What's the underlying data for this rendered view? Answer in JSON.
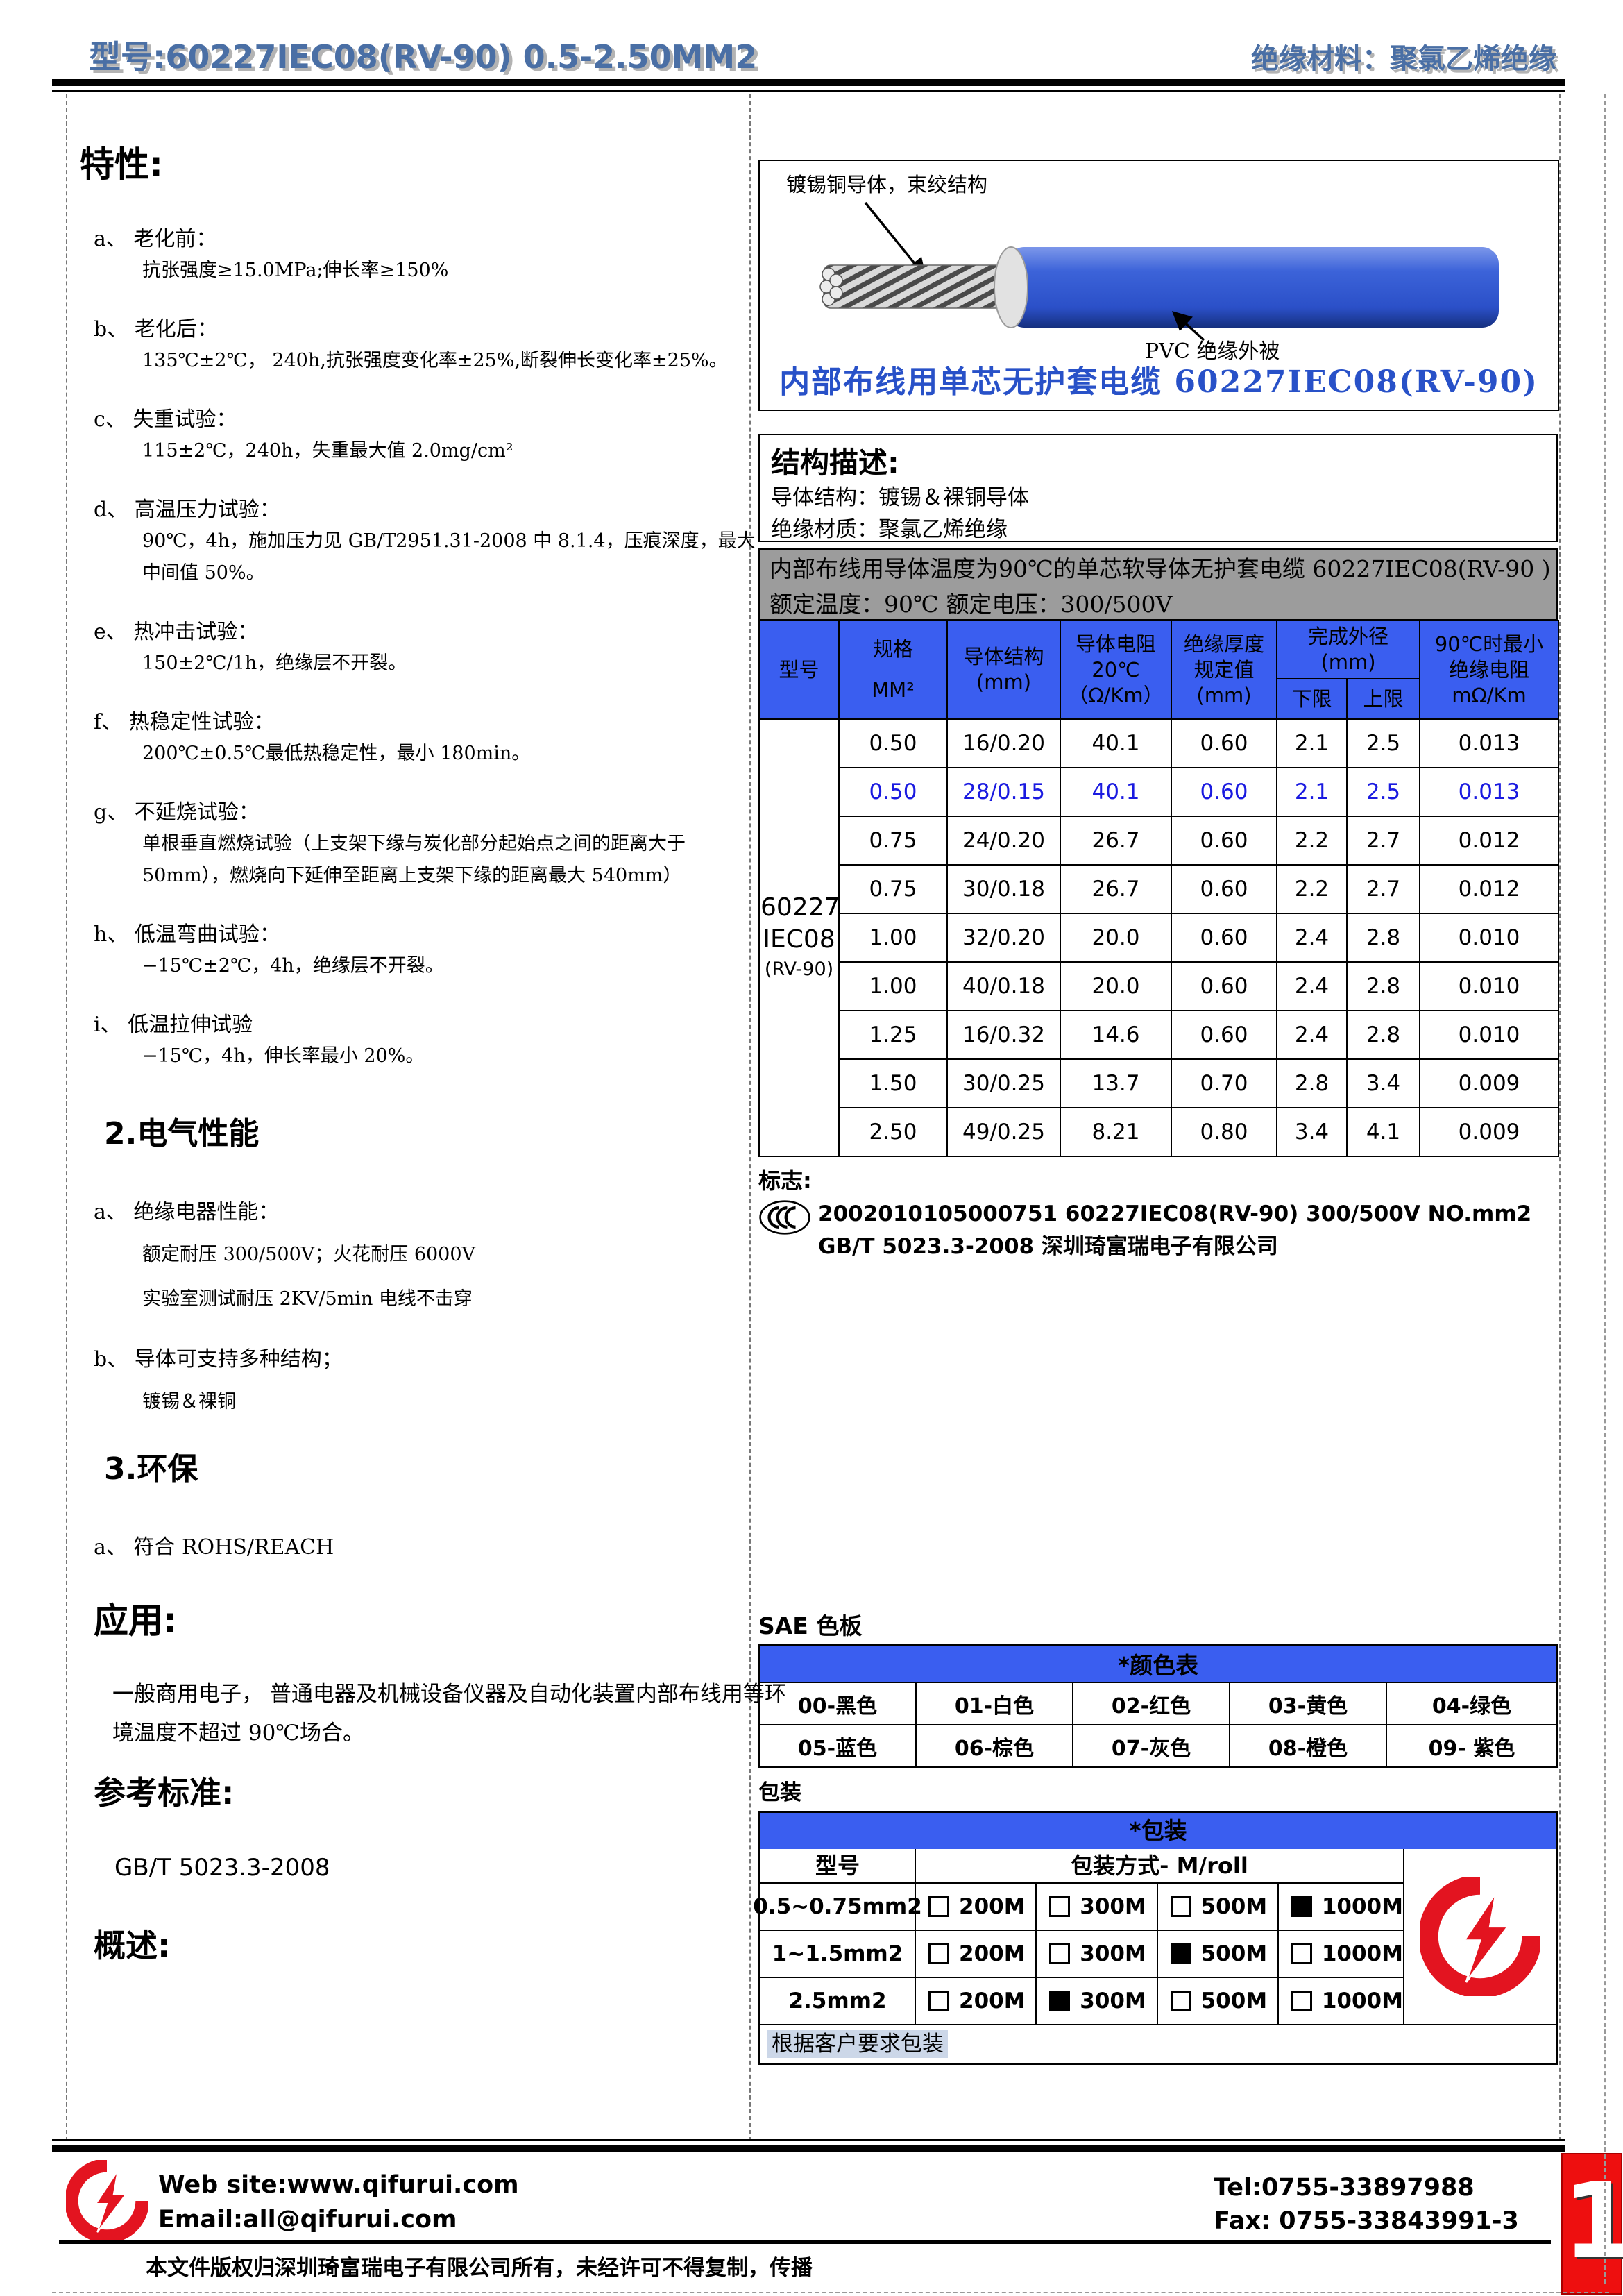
{
  "colors": {
    "header_blue": "#4a6fa5",
    "table_header_blue": "#3a5ef0",
    "row_highlight_blue": "#1a1ae0",
    "banner_gray": "#9c9c9c",
    "cable_blue": "#2b50c8",
    "brand_red": "#e31420",
    "note_highlight": "#ccd7e8"
  },
  "header": {
    "left": "型号:60227IEC08(RV-90) 0.5-2.50MM2",
    "right": "绝缘材料：聚氯乙烯绝缘"
  },
  "characteristics": {
    "title": "特性:",
    "items": [
      {
        "head": "a、 老化前：",
        "lines": [
          "抗张强度≥15.0MPa;伸长率≥150%"
        ]
      },
      {
        "head": "b、 老化后：",
        "lines": [
          "135℃±2℃， 240h,抗张强度变化率±25%,断裂伸长变化率±25%。"
        ]
      },
      {
        "head": "c、 失重试验：",
        "lines": [
          "115±2℃，240h，失重最大值 2.0mg/cm²"
        ]
      },
      {
        "head": "d、 高温压力试验：",
        "lines": [
          "90℃，4h，施加压力见 GB/T2951.31-2008 中 8.1.4，压痕深度，最大",
          "中间值 50%。"
        ]
      },
      {
        "head": "e、 热冲击试验：",
        "lines": [
          "150±2℃/1h，绝缘层不开裂。"
        ]
      },
      {
        "head": "f、 热稳定性试验：",
        "lines": [
          "200℃±0.5℃最低热稳定性，最小 180min。"
        ]
      },
      {
        "head": "g、 不延烧试验：",
        "lines": [
          "单根垂直燃烧试验（上支架下缘与炭化部分起始点之间的距离大于",
          "50mm），燃烧向下延伸至距离上支架下缘的距离最大 540mm）"
        ]
      },
      {
        "head": "h、 低温弯曲试验：",
        "lines": [
          "−15℃±2℃，4h，绝缘层不开裂。"
        ]
      },
      {
        "head": "i、 低温拉伸试验",
        "lines": [
          "−15℃，4h，伸长率最小 20%。"
        ]
      }
    ]
  },
  "electrical": {
    "title": "2.电气性能",
    "items": [
      {
        "head": "a、 绝缘电器性能：",
        "lines": [
          "额定耐压 300/500V；火花耐压 6000V",
          "实验室测试耐压 2KV/5min 电线不击穿"
        ]
      },
      {
        "head": "b、 导体可支持多种结构；",
        "lines": [
          "镀锡＆裸铜"
        ]
      }
    ]
  },
  "environment": {
    "title": "3.环保",
    "items": [
      {
        "head": "a、 符合 ROHS/REACH",
        "lines": []
      }
    ]
  },
  "application": {
    "title": "应用:",
    "lines": [
      "一般商用电子， 普通电器及机械设备仪器及自动化装置内部布线用等环",
      "境温度不超过 90℃场合。"
    ]
  },
  "reference": {
    "title": "参考标准:",
    "standard": "GB/T 5023.3-2008"
  },
  "overview": {
    "title": "概述:"
  },
  "diagram": {
    "conductor_label": "镀锡铜导体，束绞结构",
    "pvc_label": "PVC 绝缘外被",
    "caption": "内部布线用单芯无护套电缆  60227IEC08(RV-90)"
  },
  "structure": {
    "title": "结构描述:",
    "lines": [
      "导体结构：镀锡＆裸铜导体",
      "绝缘材质：聚氯乙烯绝缘"
    ]
  },
  "banner": {
    "line1": "内部布线用导体温度为90℃的单芯软导体无护套电缆 60227IEC08(RV-90 )",
    "line2": "额定温度：90℃  额定电压：300/500V"
  },
  "spec_table": {
    "head": {
      "model": "型号",
      "spec": [
        "规格",
        "MM²"
      ],
      "structure": [
        "导体结构",
        "(mm)"
      ],
      "resistance": [
        "导体电阻",
        "20℃",
        "（Ω/Km）"
      ],
      "thickness": [
        "绝缘厚度",
        "规定值",
        "(mm)"
      ],
      "od_group": [
        "完成外径",
        "(mm)"
      ],
      "od_min": "下限",
      "od_max": "上限",
      "ir": [
        "90℃时最小",
        "绝缘电阻",
        "mΩ/Km"
      ]
    },
    "model_lines": [
      "60227",
      "IEC08",
      "(RV-90)"
    ],
    "rows": [
      {
        "spec": "0.50",
        "structure": "16/0.20",
        "resistance": "40.1",
        "thickness": "0.60",
        "od_min": "2.1",
        "od_max": "2.5",
        "ir": "0.013",
        "highlight": false
      },
      {
        "spec": "0.50",
        "structure": "28/0.15",
        "resistance": "40.1",
        "thickness": "0.60",
        "od_min": "2.1",
        "od_max": "2.5",
        "ir": "0.013",
        "highlight": true
      },
      {
        "spec": "0.75",
        "structure": "24/0.20",
        "resistance": "26.7",
        "thickness": "0.60",
        "od_min": "2.2",
        "od_max": "2.7",
        "ir": "0.012",
        "highlight": false
      },
      {
        "spec": "0.75",
        "structure": "30/0.18",
        "resistance": "26.7",
        "thickness": "0.60",
        "od_min": "2.2",
        "od_max": "2.7",
        "ir": "0.012",
        "highlight": false
      },
      {
        "spec": "1.00",
        "structure": "32/0.20",
        "resistance": "20.0",
        "thickness": "0.60",
        "od_min": "2.4",
        "od_max": "2.8",
        "ir": "0.010",
        "highlight": false
      },
      {
        "spec": "1.00",
        "structure": "40/0.18",
        "resistance": "20.0",
        "thickness": "0.60",
        "od_min": "2.4",
        "od_max": "2.8",
        "ir": "0.010",
        "highlight": false
      },
      {
        "spec": "1.25",
        "structure": "16/0.32",
        "resistance": "14.6",
        "thickness": "0.60",
        "od_min": "2.4",
        "od_max": "2.8",
        "ir": "0.010",
        "highlight": false
      },
      {
        "spec": "1.50",
        "structure": "30/0.25",
        "resistance": "13.7",
        "thickness": "0.70",
        "od_min": "2.8",
        "od_max": "3.4",
        "ir": "0.009",
        "highlight": false
      },
      {
        "spec": "2.50",
        "structure": "49/0.25",
        "resistance": "8.21",
        "thickness": "0.80",
        "od_min": "3.4",
        "od_max": "4.1",
        "ir": "0.009",
        "highlight": false
      }
    ]
  },
  "mark": {
    "title": "标志:",
    "text": "2002010105000751 60227IEC08(RV-90) 300/500V NO.mm2 GB/T 5023.3-2008  深圳琦富瑞电子有限公司"
  },
  "sae": {
    "title": "SAE 色板",
    "table_title": "*颜色表",
    "rows": [
      [
        "00-黑色",
        "01-白色",
        "02-红色",
        "03-黄色",
        "04-绿色"
      ],
      [
        "05-蓝色",
        "06-棕色",
        "07-灰色",
        "08-橙色",
        "09- 紫色"
      ]
    ]
  },
  "packing": {
    "title": "包装",
    "table_title": "*包装",
    "col_model": "型号",
    "col_method": "包装方式- M/roll",
    "rows": [
      {
        "model": "0.5~0.75mm2",
        "options": [
          {
            "label": "200M",
            "checked": false
          },
          {
            "label": "300M",
            "checked": false
          },
          {
            "label": "500M",
            "checked": false
          },
          {
            "label": "1000M",
            "checked": true
          }
        ]
      },
      {
        "model": "1~1.5mm2",
        "options": [
          {
            "label": "200M",
            "checked": false
          },
          {
            "label": "300M",
            "checked": false
          },
          {
            "label": "500M",
            "checked": true
          },
          {
            "label": "1000M",
            "checked": false
          }
        ]
      },
      {
        "model": "2.5mm2",
        "options": [
          {
            "label": "200M",
            "checked": false
          },
          {
            "label": "300M",
            "checked": true
          },
          {
            "label": "500M",
            "checked": false
          },
          {
            "label": "1000M",
            "checked": false
          }
        ]
      }
    ],
    "note": "根据客户要求包装"
  },
  "footer": {
    "website": "Web site:www.qifurui.com",
    "email": "Email:all@qifurui.com",
    "tel": "Tel:0755-33897988",
    "fax": "Fax: 0755-33843991-3",
    "copyright": "本文件版权归深圳琦富瑞电子有限公司所有，未经许可不得复制，传播",
    "page_number": "1"
  }
}
